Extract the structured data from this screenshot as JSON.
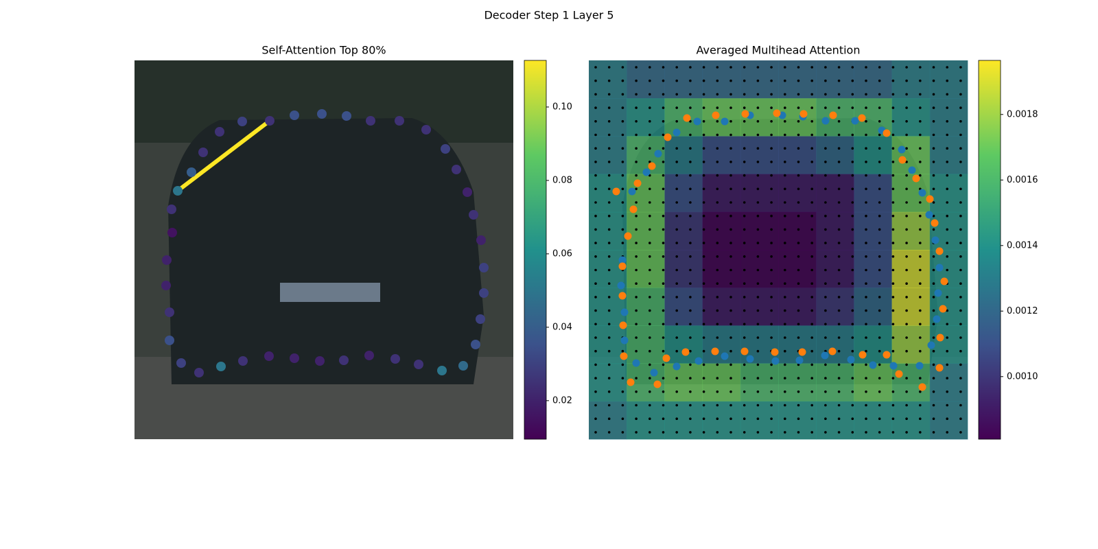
{
  "suptitle": "Decoder Step 1 Layer 5",
  "chart_data": [
    {
      "type": "scatter",
      "title": "Self-Attention Top 80%",
      "colormap": "viridis",
      "xlim": [
        0,
        552
      ],
      "ylim": [
        552,
        0
      ],
      "x": [
        63,
        83,
        100,
        124,
        157,
        197,
        233,
        273,
        309,
        344,
        386,
        425,
        453,
        469,
        485,
        494,
        505,
        509,
        509,
        504,
        497,
        479,
        448,
        414,
        380,
        342,
        305,
        270,
        233,
        196,
        158,
        126,
        94,
        68,
        51,
        51,
        46,
        47,
        55,
        54
      ],
      "y": [
        190,
        163,
        134,
        104,
        89,
        88,
        80,
        78,
        81,
        88,
        88,
        101,
        129,
        159,
        192,
        225,
        262,
        302,
        339,
        377,
        414,
        445,
        452,
        443,
        435,
        430,
        437,
        438,
        434,
        431,
        438,
        446,
        455,
        441,
        408,
        367,
        328,
        291,
        251,
        217
      ],
      "values": [
        0.05,
        0.04,
        0.025,
        0.025,
        0.03,
        0.025,
        0.035,
        0.035,
        0.035,
        0.025,
        0.025,
        0.025,
        0.03,
        0.025,
        0.02,
        0.025,
        0.02,
        0.03,
        0.03,
        0.03,
        0.035,
        0.045,
        0.05,
        0.025,
        0.025,
        0.02,
        0.025,
        0.02,
        0.02,
        0.02,
        0.025,
        0.05,
        0.025,
        0.03,
        0.035,
        0.025,
        0.02,
        0.02,
        0.015,
        0.025
      ],
      "line": {
        "x": [
          63,
          197
        ],
        "y": [
          190,
          88
        ],
        "color": "#fde725"
      },
      "clim": [
        0.0095,
        0.1127
      ],
      "cticks": [
        0.02,
        0.04,
        0.06,
        0.08,
        {
          "value": 0.1,
          "label": "0.10"
        }
      ]
    },
    {
      "type": "heatmap",
      "title": "Averaged Multihead Attention",
      "colormap": "viridis",
      "xlim": [
        0,
        552
      ],
      "ylim": [
        552,
        0
      ],
      "z": [
        [
          0.0013,
          0.0012,
          0.0012,
          0.0012,
          0.0012,
          0.0012,
          0.0012,
          0.0012,
          0.0013,
          0.0013
        ],
        [
          0.0013,
          0.0014,
          0.0016,
          0.0017,
          0.0017,
          0.0017,
          0.0016,
          0.0016,
          0.0014,
          0.0013
        ],
        [
          0.0013,
          0.0016,
          0.0013,
          0.0011,
          0.0011,
          0.0011,
          0.0012,
          0.0014,
          0.0017,
          0.0013
        ],
        [
          0.0014,
          0.0017,
          0.0011,
          0.0009,
          0.0009,
          0.0009,
          0.0009,
          0.0011,
          0.0017,
          0.0014
        ],
        [
          0.0014,
          0.0017,
          0.001,
          0.0008,
          0.0008,
          0.0008,
          0.0009,
          0.0011,
          0.0018,
          0.0014
        ],
        [
          0.0014,
          0.0017,
          0.001,
          0.0008,
          0.0008,
          0.0008,
          0.0009,
          0.0011,
          0.0019,
          0.0014
        ],
        [
          0.0014,
          0.0016,
          0.0011,
          0.0009,
          0.0009,
          0.0009,
          0.001,
          0.0012,
          0.0019,
          0.0014
        ],
        [
          0.0014,
          0.0016,
          0.0014,
          0.0013,
          0.0013,
          0.0013,
          0.0013,
          0.0014,
          0.0018,
          0.0014
        ],
        [
          0.0014,
          0.0016,
          0.0017,
          0.0017,
          0.0016,
          0.0016,
          0.0016,
          0.0017,
          0.0016,
          0.0013
        ],
        [
          0.0013,
          0.0014,
          0.0014,
          0.0014,
          0.0014,
          0.0014,
          0.0014,
          0.0014,
          0.0014,
          0.0013
        ]
      ],
      "clim": [
        0.000809,
        0.001965
      ],
      "cticks": [
        {
          "value": 0.001,
          "label": "0.0010"
        },
        0.0012,
        0.0014,
        0.0016,
        0.0018
      ],
      "series": [
        {
          "color": "#1f77b4",
          "x": [
            128,
            158,
            198,
            235,
            282,
            312,
            345,
            388,
            427,
            456,
            471,
            486,
            496,
            505,
            511,
            509,
            507,
            499,
            482,
            444,
            414,
            382,
            344,
            307,
            272,
            235,
            198,
            160,
            128,
            95,
            69,
            52,
            52,
            47,
            49,
            63,
            84,
            101
          ],
          "y": [
            105,
            89,
            89,
            80,
            80,
            82,
            88,
            88,
            102,
            130,
            160,
            193,
            225,
            262,
            302,
            339,
            377,
            415,
            445,
            445,
            444,
            436,
            430,
            437,
            438,
            435,
            431,
            438,
            446,
            455,
            441,
            408,
            367,
            328,
            291,
            191,
            163,
            136
          ]
        },
        {
          "color": "#ff7f0e",
          "x": [
            40,
            65,
            57,
            49,
            49,
            50,
            51,
            61,
            100,
            113,
            141,
            184,
            227,
            271,
            311,
            355,
            399,
            434,
            452,
            486,
            511,
            512,
            516,
            518,
            511,
            504,
            497,
            477,
            457,
            434,
            398,
            356,
            313,
            274,
            228,
            185,
            143,
            115,
            92,
            71
          ],
          "y": [
            191,
            217,
            256,
            300,
            343,
            386,
            431,
            469,
            472,
            434,
            425,
            424,
            424,
            425,
            425,
            424,
            429,
            429,
            457,
            476,
            448,
            404,
            362,
            322,
            278,
            237,
            202,
            172,
            145,
            106,
            84,
            80,
            78,
            77,
            78,
            80,
            84,
            112,
            154,
            179
          ]
        }
      ]
    }
  ]
}
